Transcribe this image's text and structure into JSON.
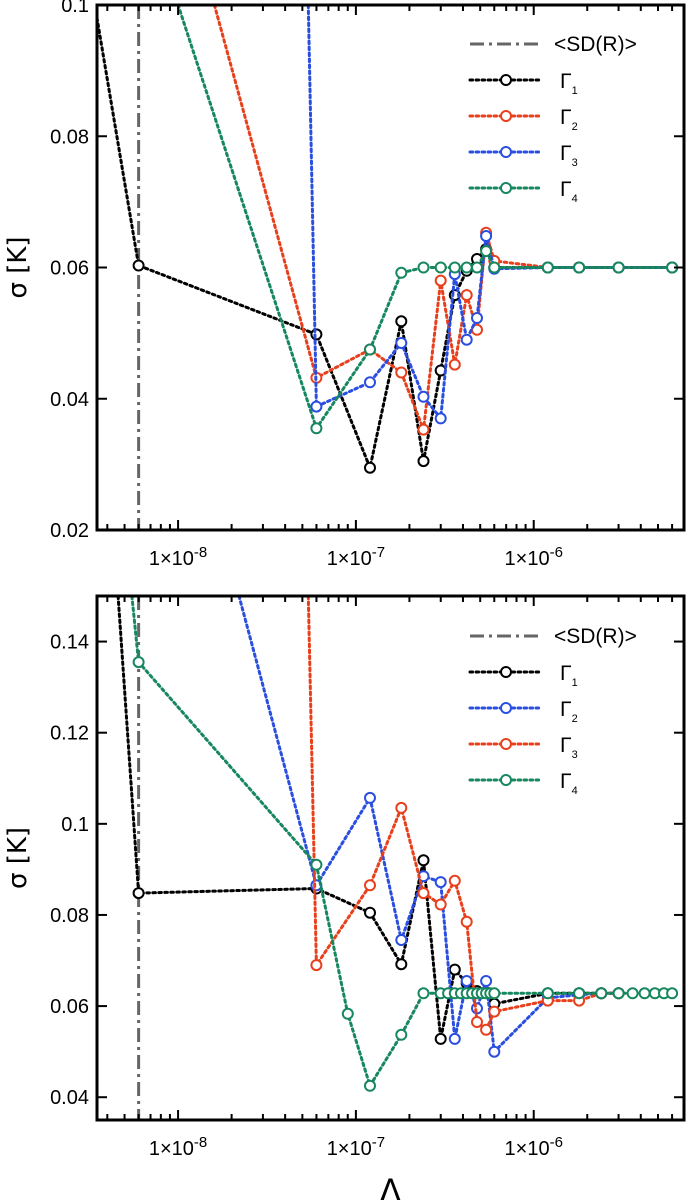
{
  "chart_data": [
    {
      "type": "line",
      "title": "",
      "xlabel": "",
      "ylabel": "σ [K]",
      "xscale": "log",
      "xlim": [
        3.5e-09,
        7e-06
      ],
      "ylim": [
        0.02,
        0.1
      ],
      "yticks": [
        0.02,
        0.04,
        0.06,
        0.08,
        0.1
      ],
      "ytick_labels": [
        "0.02",
        "0.04",
        "0.06",
        "0.08",
        "0.1"
      ],
      "xticks": [
        1e-08,
        1e-07,
        1e-06
      ],
      "xtick_labels": [
        {
          "mant": "1×10",
          "exp": "-8"
        },
        {
          "mant": "1×10",
          "exp": "-7"
        },
        {
          "mant": "1×10",
          "exp": "-6"
        }
      ],
      "legend_position": "top-right",
      "reference_line": {
        "label": "<SD(R)>",
        "x": 6e-09,
        "color": "#666666",
        "style": "dashdot"
      },
      "series": [
        {
          "name": "Γ",
          "subscript": "1",
          "color": "#000000",
          "x": [
            3.5e-09,
            6e-09,
            6e-08,
            1.2e-07,
            1.8e-07,
            2.4e-07,
            3e-07,
            3.6e-07,
            4.2e-07,
            4.8e-07,
            5.4e-07,
            6e-07,
            1.2e-06,
            1.8e-06,
            3e-06,
            6e-06
          ],
          "y": [
            0.098,
            0.0603,
            0.0498,
            0.0295,
            0.0518,
            0.0305,
            0.0443,
            0.0558,
            0.0595,
            0.0613,
            0.0628,
            0.06,
            0.06,
            0.06,
            0.06,
            0.06
          ],
          "markers_from": 1
        },
        {
          "name": "Γ",
          "subscript": "2",
          "color": "#e8401c",
          "x": [
            1.6e-08,
            6e-08,
            1.2e-07,
            1.8e-07,
            2.4e-07,
            3e-07,
            3.6e-07,
            4.2e-07,
            4.8e-07,
            5.4e-07,
            6e-07,
            1.2e-06,
            1.8e-06,
            3e-06,
            6e-06
          ],
          "y": [
            0.1,
            0.0432,
            0.0475,
            0.044,
            0.0353,
            0.058,
            0.0452,
            0.0558,
            0.0505,
            0.0653,
            0.061,
            0.06,
            0.06,
            0.06,
            0.06
          ],
          "markers_from": 1
        },
        {
          "name": "Γ",
          "subscript": "3",
          "color": "#2a4fe0",
          "x": [
            5.4e-08,
            6e-08,
            1.2e-07,
            1.8e-07,
            2.4e-07,
            3e-07,
            3.6e-07,
            4.2e-07,
            4.8e-07,
            5.4e-07,
            6e-07,
            1.2e-06,
            1.8e-06,
            3e-06,
            6e-06
          ],
          "y": [
            0.1,
            0.0388,
            0.0425,
            0.0485,
            0.0403,
            0.037,
            0.059,
            0.049,
            0.0523,
            0.0648,
            0.0598,
            0.06,
            0.06,
            0.06,
            0.06
          ],
          "markers_from": 1
        },
        {
          "name": "Γ",
          "subscript": "4",
          "color": "#16875e",
          "x": [
            1e-08,
            6e-08,
            1.2e-07,
            1.8e-07,
            2.4e-07,
            3e-07,
            3.6e-07,
            4.2e-07,
            4.8e-07,
            5.4e-07,
            6e-07,
            1.2e-06,
            1.8e-06,
            3e-06,
            6e-06
          ],
          "y": [
            0.1,
            0.0355,
            0.0475,
            0.0592,
            0.06,
            0.06,
            0.06,
            0.06,
            0.06,
            0.0625,
            0.06,
            0.06,
            0.06,
            0.06,
            0.06
          ],
          "markers_from": 1
        }
      ]
    },
    {
      "type": "line",
      "title": "",
      "xlabel": "Λ",
      "ylabel": "σ [K]",
      "xscale": "log",
      "xlim": [
        3.5e-09,
        7e-06
      ],
      "ylim": [
        0.035,
        0.15
      ],
      "yticks": [
        0.04,
        0.06,
        0.08,
        0.1,
        0.12,
        0.14
      ],
      "ytick_labels": [
        "0.04",
        "0.06",
        "0.08",
        "0.1",
        "0.12",
        "0.14"
      ],
      "xticks": [
        1e-08,
        1e-07,
        1e-06
      ],
      "xtick_labels": [
        {
          "mant": "1×10",
          "exp": "-8"
        },
        {
          "mant": "1×10",
          "exp": "-7"
        },
        {
          "mant": "1×10",
          "exp": "-6"
        }
      ],
      "legend_position": "top-right",
      "reference_line": {
        "label": "<SD(R)>",
        "x": 6e-09,
        "color": "#666666",
        "style": "dashdot"
      },
      "series": [
        {
          "name": "Γ",
          "subscript": "1",
          "color": "#000000",
          "x": [
            4.6e-09,
            6e-09,
            6e-08,
            1.2e-07,
            1.8e-07,
            2.4e-07,
            3e-07,
            3.6e-07,
            4.2e-07,
            4.8e-07,
            5.4e-07,
            6e-07,
            1.2e-06,
            1.8e-06,
            2.4e-06,
            3e-06
          ],
          "y": [
            0.15,
            0.0848,
            0.0858,
            0.0805,
            0.0692,
            0.092,
            0.0528,
            0.068,
            0.065,
            0.0633,
            0.063,
            0.0605,
            0.0628,
            0.0628,
            0.0628,
            0.0628
          ],
          "markers_from": 1
        },
        {
          "name": "Γ",
          "subscript": "2",
          "color": "#2a4fe0",
          "x": [
            2.2e-08,
            6e-08,
            1.2e-07,
            1.8e-07,
            2.4e-07,
            3e-07,
            3.6e-07,
            4.2e-07,
            4.8e-07,
            5.4e-07,
            6e-07,
            1.2e-06,
            1.8e-06,
            2.4e-06,
            3e-06
          ],
          "y": [
            0.15,
            0.0865,
            0.1057,
            0.0745,
            0.0885,
            0.0872,
            0.0528,
            0.0655,
            0.0595,
            0.0655,
            0.05,
            0.0618,
            0.0625,
            0.0628,
            0.0628
          ],
          "markers_from": 1
        },
        {
          "name": "Γ",
          "subscript": "3",
          "color": "#e8401c",
          "x": [
            5.4e-08,
            6e-08,
            1.2e-07,
            1.8e-07,
            2.4e-07,
            3e-07,
            3.6e-07,
            4.2e-07,
            4.8e-07,
            5.4e-07,
            6e-07,
            1.2e-06,
            1.8e-06,
            2.4e-06,
            3e-06
          ],
          "y": [
            0.15,
            0.069,
            0.0865,
            0.1035,
            0.0848,
            0.0823,
            0.0875,
            0.0785,
            0.0565,
            0.0548,
            0.0588,
            0.0612,
            0.0612,
            0.0628,
            0.0628
          ],
          "markers_from": 1
        },
        {
          "name": "Γ",
          "subscript": "4",
          "color": "#16875e",
          "x": [
            5.5e-09,
            6e-09,
            6e-08,
            9e-08,
            1.2e-07,
            1.8e-07,
            2.4e-07,
            3e-07,
            3.3e-07,
            3.6e-07,
            3.9e-07,
            4.2e-07,
            4.5e-07,
            4.8e-07,
            5.1e-07,
            5.4e-07,
            5.7e-07,
            6e-07,
            1.2e-06,
            1.8e-06,
            2.4e-06,
            3e-06,
            3.6e-06,
            4.2e-06,
            4.8e-06,
            5.4e-06,
            6e-06
          ],
          "y": [
            0.15,
            0.1355,
            0.091,
            0.0583,
            0.0425,
            0.0537,
            0.0628,
            0.0628,
            0.0628,
            0.0628,
            0.0628,
            0.0628,
            0.0628,
            0.0628,
            0.0628,
            0.0628,
            0.0628,
            0.0628,
            0.0628,
            0.0628,
            0.0628,
            0.0628,
            0.0628,
            0.0628,
            0.0628,
            0.0628,
            0.0628
          ],
          "markers_from": 1
        }
      ]
    }
  ]
}
